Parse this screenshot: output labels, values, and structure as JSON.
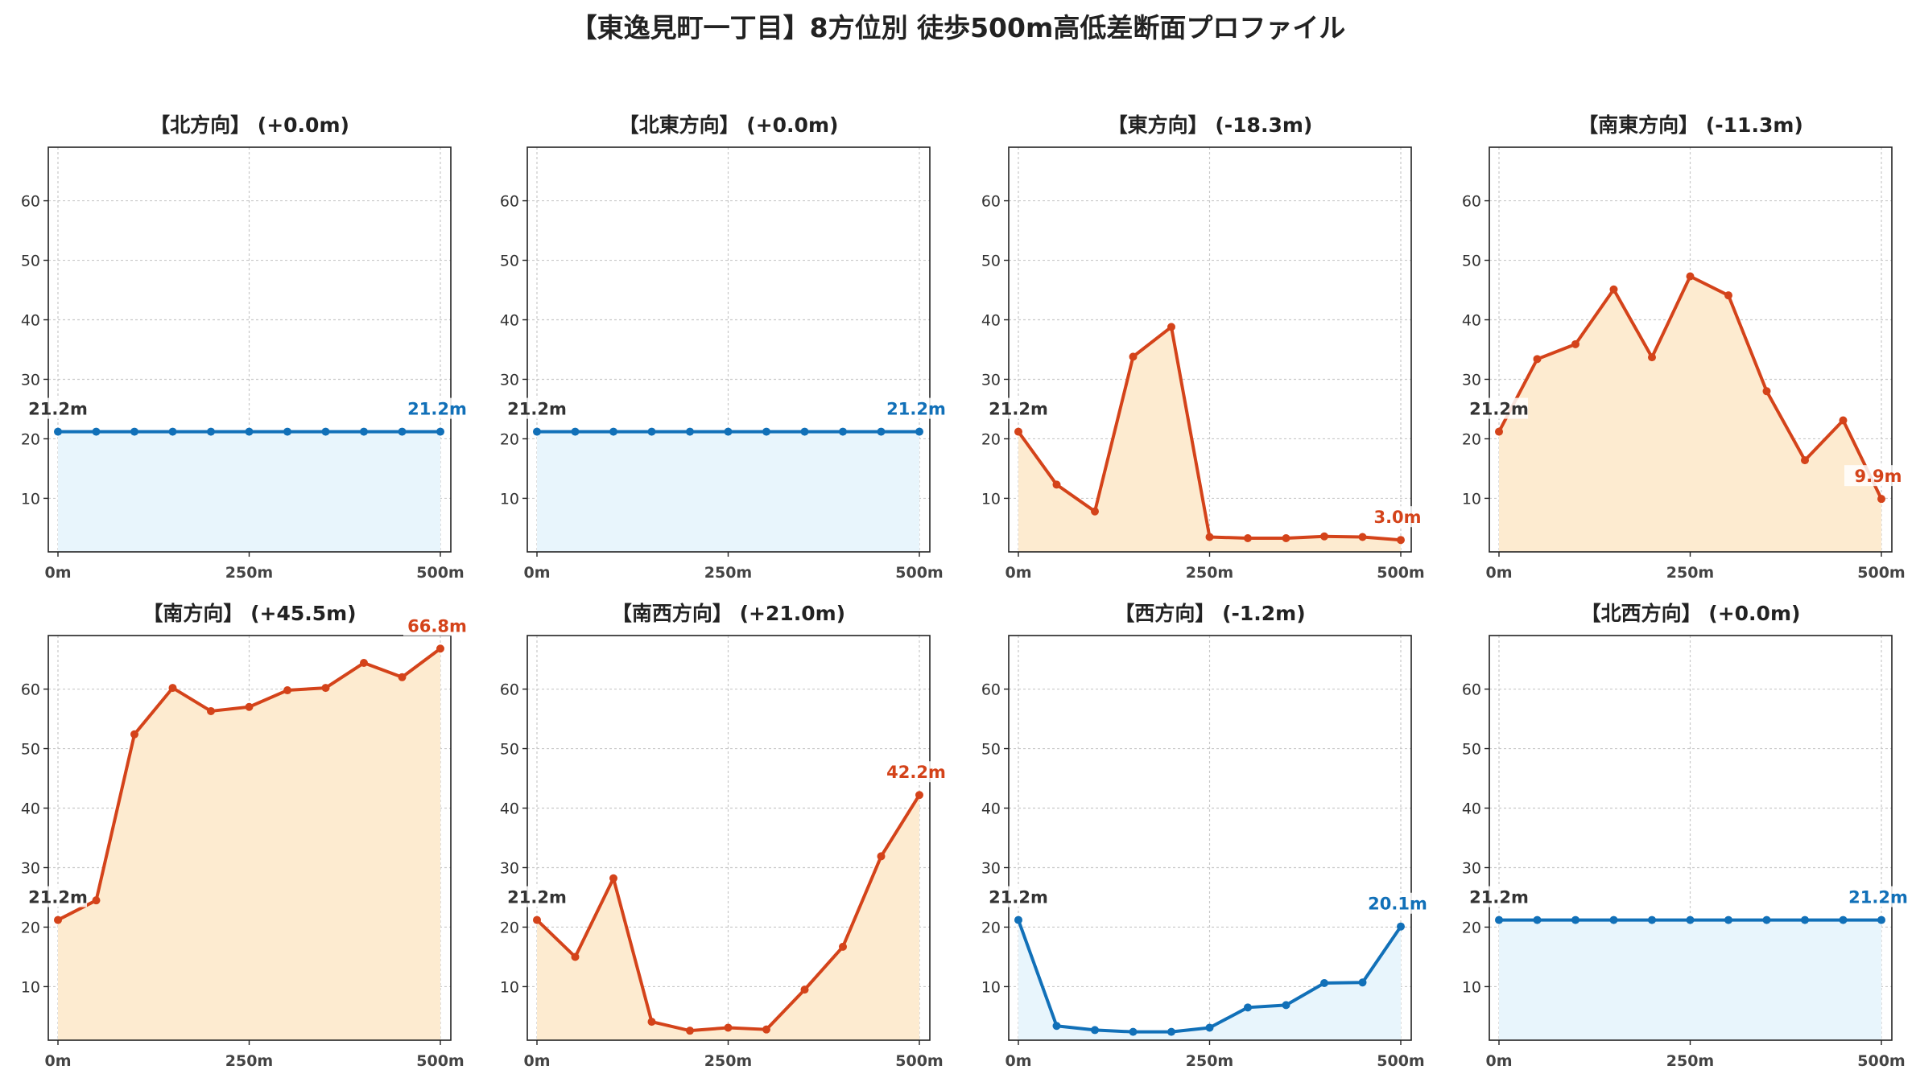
{
  "title": "【東逸見町一丁目】8方位別 徒歩500m高低差断面プロファイル",
  "colors": {
    "flat_line": "#1170b8",
    "flat_fill": "#e8f5fc",
    "change_line": "#d4431a",
    "change_fill": "#fdebd0",
    "start_label": "#333333",
    "grid": "#c8c8c8"
  },
  "chart_data": [
    {
      "type": "area",
      "title": "【北方向】 (+0.0m)",
      "style": "flat",
      "x": [
        0,
        50,
        100,
        150,
        200,
        250,
        300,
        350,
        400,
        450,
        500
      ],
      "y": [
        21.2,
        21.2,
        21.2,
        21.2,
        21.2,
        21.2,
        21.2,
        21.2,
        21.2,
        21.2,
        21.2
      ],
      "xticks": [
        0,
        250,
        500
      ],
      "xtick_labels": [
        "0m",
        "250m",
        "500m"
      ],
      "yticks": [
        10,
        20,
        30,
        40,
        50,
        60
      ],
      "ylim": [
        1,
        69
      ],
      "grid": true,
      "start_label": "21.2m",
      "end_label": "21.2m"
    },
    {
      "type": "area",
      "title": "【北東方向】 (+0.0m)",
      "style": "flat",
      "x": [
        0,
        50,
        100,
        150,
        200,
        250,
        300,
        350,
        400,
        450,
        500
      ],
      "y": [
        21.2,
        21.2,
        21.2,
        21.2,
        21.2,
        21.2,
        21.2,
        21.2,
        21.2,
        21.2,
        21.2
      ],
      "xticks": [
        0,
        250,
        500
      ],
      "xtick_labels": [
        "0m",
        "250m",
        "500m"
      ],
      "yticks": [
        10,
        20,
        30,
        40,
        50,
        60
      ],
      "ylim": [
        1,
        69
      ],
      "grid": true,
      "start_label": "21.2m",
      "end_label": "21.2m"
    },
    {
      "type": "area",
      "title": "【東方向】 (-18.3m)",
      "style": "change",
      "x": [
        0,
        50,
        100,
        150,
        200,
        250,
        300,
        350,
        400,
        450,
        500
      ],
      "y": [
        21.2,
        12.3,
        7.8,
        33.8,
        38.8,
        3.5,
        3.3,
        3.3,
        3.6,
        3.5,
        3.0
      ],
      "xticks": [
        0,
        250,
        500
      ],
      "xtick_labels": [
        "0m",
        "250m",
        "500m"
      ],
      "yticks": [
        10,
        20,
        30,
        40,
        50,
        60
      ],
      "ylim": [
        1,
        69
      ],
      "grid": true,
      "start_label": "21.2m",
      "end_label": "3.0m"
    },
    {
      "type": "area",
      "title": "【南東方向】 (-11.3m)",
      "style": "change",
      "x": [
        0,
        50,
        100,
        150,
        200,
        250,
        300,
        350,
        400,
        450,
        500
      ],
      "y": [
        21.2,
        33.4,
        35.9,
        45.1,
        33.7,
        47.3,
        44.1,
        28.0,
        16.4,
        23.1,
        9.9
      ],
      "xticks": [
        0,
        250,
        500
      ],
      "xtick_labels": [
        "0m",
        "250m",
        "500m"
      ],
      "yticks": [
        10,
        20,
        30,
        40,
        50,
        60
      ],
      "ylim": [
        1,
        69
      ],
      "grid": true,
      "start_label": "21.2m",
      "end_label": "9.9m"
    },
    {
      "type": "area",
      "title": "【南方向】 (+45.5m)",
      "style": "change",
      "x": [
        0,
        50,
        100,
        150,
        200,
        250,
        300,
        350,
        400,
        450,
        500
      ],
      "y": [
        21.2,
        24.5,
        52.4,
        60.2,
        56.3,
        57.0,
        59.8,
        60.2,
        64.4,
        62.0,
        66.8
      ],
      "xticks": [
        0,
        250,
        500
      ],
      "xtick_labels": [
        "0m",
        "250m",
        "500m"
      ],
      "yticks": [
        10,
        20,
        30,
        40,
        50,
        60
      ],
      "ylim": [
        1,
        69
      ],
      "grid": true,
      "start_label": "21.2m",
      "end_label": "66.8m"
    },
    {
      "type": "area",
      "title": "【南西方向】 (+21.0m)",
      "style": "change",
      "x": [
        0,
        50,
        100,
        150,
        200,
        250,
        300,
        350,
        400,
        450,
        500
      ],
      "y": [
        21.2,
        15.0,
        28.2,
        4.1,
        2.6,
        3.1,
        2.8,
        9.5,
        16.7,
        31.9,
        42.2
      ],
      "xticks": [
        0,
        250,
        500
      ],
      "xtick_labels": [
        "0m",
        "250m",
        "500m"
      ],
      "yticks": [
        10,
        20,
        30,
        40,
        50,
        60
      ],
      "ylim": [
        1,
        69
      ],
      "grid": true,
      "start_label": "21.2m",
      "end_label": "42.2m"
    },
    {
      "type": "area",
      "title": "【西方向】 (-1.2m)",
      "style": "flat",
      "x": [
        0,
        50,
        100,
        150,
        200,
        250,
        300,
        350,
        400,
        450,
        500
      ],
      "y": [
        21.2,
        3.4,
        2.7,
        2.4,
        2.4,
        3.1,
        6.5,
        6.9,
        10.6,
        10.7,
        20.1
      ],
      "xticks": [
        0,
        250,
        500
      ],
      "xtick_labels": [
        "0m",
        "250m",
        "500m"
      ],
      "yticks": [
        10,
        20,
        30,
        40,
        50,
        60
      ],
      "ylim": [
        1,
        69
      ],
      "grid": true,
      "start_label": "21.2m",
      "end_label": "20.1m"
    },
    {
      "type": "area",
      "title": "【北西方向】 (+0.0m)",
      "style": "flat",
      "x": [
        0,
        50,
        100,
        150,
        200,
        250,
        300,
        350,
        400,
        450,
        500
      ],
      "y": [
        21.2,
        21.2,
        21.2,
        21.2,
        21.2,
        21.2,
        21.2,
        21.2,
        21.2,
        21.2,
        21.2
      ],
      "xticks": [
        0,
        250,
        500
      ],
      "xtick_labels": [
        "0m",
        "250m",
        "500m"
      ],
      "yticks": [
        10,
        20,
        30,
        40,
        50,
        60
      ],
      "ylim": [
        1,
        69
      ],
      "grid": true,
      "start_label": "21.2m",
      "end_label": "21.2m"
    }
  ]
}
